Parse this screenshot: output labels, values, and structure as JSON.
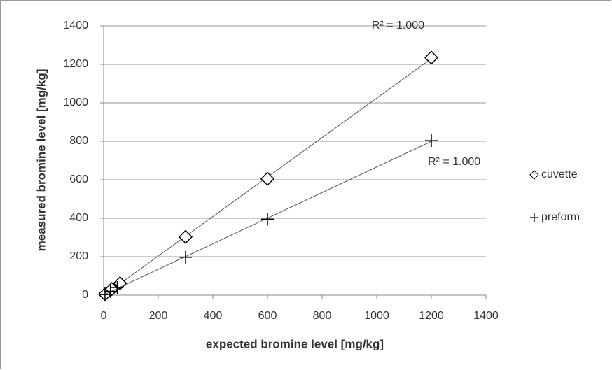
{
  "chart_data": {
    "type": "scatter",
    "xlabel": "expected bromine level  [mg/kg]",
    "ylabel": "measured bromine level [mg/kg]",
    "series": [
      {
        "name": "cuvette",
        "color": "#000000",
        "marker": "diamond",
        "trendline": true,
        "x": [
          5,
          30,
          60,
          300,
          600,
          1200
        ],
        "values": [
          5,
          32,
          62,
          303,
          605,
          1235
        ]
      },
      {
        "name": "preform",
        "color": "#000000",
        "marker": "plus",
        "trendline": true,
        "x": [
          5,
          25,
          50,
          300,
          600,
          1200
        ],
        "values": [
          3,
          20,
          40,
          197,
          395,
          803
        ]
      }
    ],
    "annotations": [
      {
        "text": "R² = 1.000"
      },
      {
        "text": "R² = 1.000"
      }
    ],
    "xlim": [
      0,
      1400
    ],
    "xticks": [
      0,
      200,
      400,
      600,
      800,
      1000,
      1200,
      1400
    ],
    "ylim": [
      0,
      1400
    ],
    "yticks": [
      0,
      200,
      400,
      600,
      800,
      1000,
      1200,
      1400
    ],
    "grid": true,
    "legend": "right"
  }
}
